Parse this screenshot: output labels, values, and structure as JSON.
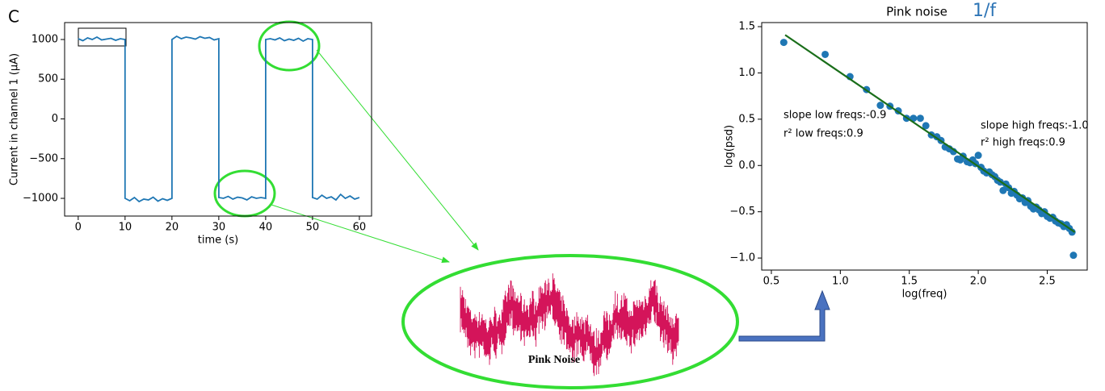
{
  "panel_label": "C",
  "chart_data": [
    {
      "type": "line",
      "xlabel": "time (s)",
      "ylabel": "Current in channel 1 (μA)",
      "xlim": [
        -2.9,
        62.6
      ],
      "ylim": [
        -1223,
        1213
      ],
      "xticks": [
        0,
        10,
        20,
        30,
        40,
        50,
        60
      ],
      "yticks": [
        {
          "value": -1000,
          "label": "−1000"
        },
        {
          "value": -500,
          "label": "−500"
        },
        0,
        500,
        1000
      ],
      "color": "#1f77b4",
      "x": [
        0,
        1,
        2,
        3,
        4,
        5,
        6,
        7,
        8,
        9,
        10,
        10,
        11,
        12,
        13,
        14,
        15,
        16,
        17,
        18,
        19,
        20,
        20,
        21,
        22,
        23,
        24,
        25,
        26,
        27,
        28,
        29,
        30,
        30,
        31,
        32,
        33,
        34,
        35,
        36,
        37,
        38,
        39,
        40,
        40,
        41,
        42,
        43,
        44,
        45,
        46,
        47,
        48,
        49,
        50,
        50,
        51,
        52,
        53,
        54,
        55,
        56,
        57,
        58,
        59,
        60
      ],
      "values": [
        1010,
        985,
        1020,
        1000,
        1030,
        995,
        1005,
        1015,
        990,
        1010,
        1000,
        -1000,
        -1030,
        -990,
        -1040,
        -1010,
        -1020,
        -985,
        -1035,
        -1005,
        -1025,
        -1000,
        1000,
        1040,
        1010,
        1030,
        1020,
        1005,
        1035,
        1015,
        1025,
        995,
        1010,
        -990,
        -1000,
        -975,
        -1010,
        -985,
        -995,
        -1020,
        -980,
        -1000,
        -990,
        -1000,
        1000,
        1010,
        995,
        1020,
        985,
        1005,
        990,
        1015,
        980,
        1010,
        1000,
        -990,
        -1010,
        -960,
        -1000,
        -980,
        -1020,
        -950,
        -1000,
        -970,
        -1010,
        -990
      ]
    },
    {
      "type": "scatter",
      "title": "Pink noise",
      "title_note": "1/f",
      "xlabel": "log(freq)",
      "ylabel": "log(psd)",
      "xlim": [
        0.43,
        2.79
      ],
      "ylim": [
        -1.13,
        1.544
      ],
      "xticks": [
        0.5,
        {
          "value": 1,
          "label": "1.0"
        },
        1.5,
        {
          "value": 2,
          "label": "2.0"
        },
        2.5
      ],
      "yticks": [
        {
          "value": -1,
          "label": "−1.0"
        },
        {
          "value": -0.5,
          "label": "−0.5"
        },
        {
          "value": 0,
          "label": "0.0"
        },
        0.5,
        {
          "value": 1,
          "label": "1.0"
        },
        1.5
      ],
      "color": "#1f77b4",
      "x": [
        0.59,
        0.89,
        1.07,
        1.19,
        1.29,
        1.36,
        1.42,
        1.48,
        1.53,
        1.58,
        1.62,
        1.66,
        1.7,
        1.73,
        1.76,
        1.79,
        1.82,
        1.85,
        1.87,
        1.89,
        1.92,
        1.94,
        1.96,
        1.98,
        2.0,
        2.02,
        2.04,
        2.06,
        2.08,
        2.1,
        2.12,
        2.14,
        2.16,
        2.18,
        2.2,
        2.22,
        2.24,
        2.26,
        2.28,
        2.3,
        2.32,
        2.34,
        2.36,
        2.38,
        2.4,
        2.42,
        2.44,
        2.46,
        2.48,
        2.5,
        2.52,
        2.54,
        2.56,
        2.58,
        2.6,
        2.62,
        2.64,
        2.66,
        2.68,
        2.69
      ],
      "values": [
        1.33,
        1.2,
        0.96,
        0.82,
        0.65,
        0.64,
        0.59,
        0.51,
        0.51,
        0.51,
        0.43,
        0.33,
        0.31,
        0.27,
        0.2,
        0.18,
        0.15,
        0.07,
        0.06,
        0.1,
        0.04,
        0.03,
        0.06,
        0.02,
        0.11,
        -0.02,
        -0.06,
        -0.08,
        -0.07,
        -0.1,
        -0.12,
        -0.16,
        -0.18,
        -0.27,
        -0.2,
        -0.24,
        -0.3,
        -0.28,
        -0.32,
        -0.36,
        -0.35,
        -0.4,
        -0.38,
        -0.44,
        -0.47,
        -0.45,
        -0.48,
        -0.52,
        -0.5,
        -0.55,
        -0.57,
        -0.56,
        -0.6,
        -0.62,
        -0.63,
        -0.66,
        -0.64,
        -0.68,
        -0.72,
        -0.97
      ],
      "fit": {
        "x": [
          0.6,
          2.7
        ],
        "values": [
          1.41,
          -0.72
        ],
        "color": "#1a6e1a"
      },
      "annotations": [
        "slope low freqs:-0.9",
        "r² low freqs:0.9",
        "slope high freqs:-1.0",
        "r² high freqs:0.9"
      ]
    }
  ],
  "inset": {
    "label": "Pink Noise"
  }
}
